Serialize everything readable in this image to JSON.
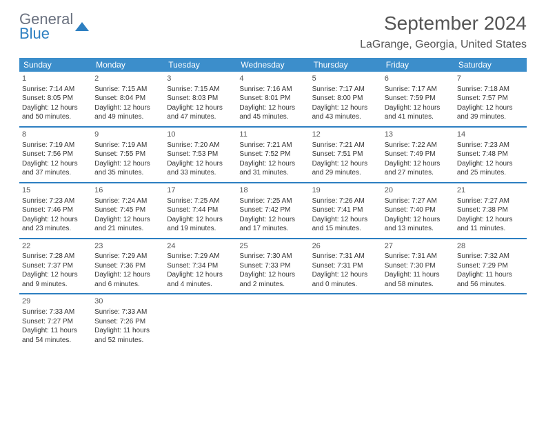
{
  "logo": {
    "line1": "General",
    "line2": "Blue"
  },
  "title": {
    "monthYear": "September 2024",
    "location": "LaGrange, Georgia, United States"
  },
  "weekdays": [
    "Sunday",
    "Monday",
    "Tuesday",
    "Wednesday",
    "Thursday",
    "Friday",
    "Saturday"
  ],
  "colors": {
    "header_bg": "#3c8ecb",
    "border": "#2d7fc1",
    "text": "#333333",
    "title_text": "#555555"
  },
  "weeks": [
    [
      {
        "day": "1",
        "sunrise": "7:14 AM",
        "sunset": "8:05 PM",
        "daylight": "12 hours and 50 minutes."
      },
      {
        "day": "2",
        "sunrise": "7:15 AM",
        "sunset": "8:04 PM",
        "daylight": "12 hours and 49 minutes."
      },
      {
        "day": "3",
        "sunrise": "7:15 AM",
        "sunset": "8:03 PM",
        "daylight": "12 hours and 47 minutes."
      },
      {
        "day": "4",
        "sunrise": "7:16 AM",
        "sunset": "8:01 PM",
        "daylight": "12 hours and 45 minutes."
      },
      {
        "day": "5",
        "sunrise": "7:17 AM",
        "sunset": "8:00 PM",
        "daylight": "12 hours and 43 minutes."
      },
      {
        "day": "6",
        "sunrise": "7:17 AM",
        "sunset": "7:59 PM",
        "daylight": "12 hours and 41 minutes."
      },
      {
        "day": "7",
        "sunrise": "7:18 AM",
        "sunset": "7:57 PM",
        "daylight": "12 hours and 39 minutes."
      }
    ],
    [
      {
        "day": "8",
        "sunrise": "7:19 AM",
        "sunset": "7:56 PM",
        "daylight": "12 hours and 37 minutes."
      },
      {
        "day": "9",
        "sunrise": "7:19 AM",
        "sunset": "7:55 PM",
        "daylight": "12 hours and 35 minutes."
      },
      {
        "day": "10",
        "sunrise": "7:20 AM",
        "sunset": "7:53 PM",
        "daylight": "12 hours and 33 minutes."
      },
      {
        "day": "11",
        "sunrise": "7:21 AM",
        "sunset": "7:52 PM",
        "daylight": "12 hours and 31 minutes."
      },
      {
        "day": "12",
        "sunrise": "7:21 AM",
        "sunset": "7:51 PM",
        "daylight": "12 hours and 29 minutes."
      },
      {
        "day": "13",
        "sunrise": "7:22 AM",
        "sunset": "7:49 PM",
        "daylight": "12 hours and 27 minutes."
      },
      {
        "day": "14",
        "sunrise": "7:23 AM",
        "sunset": "7:48 PM",
        "daylight": "12 hours and 25 minutes."
      }
    ],
    [
      {
        "day": "15",
        "sunrise": "7:23 AM",
        "sunset": "7:46 PM",
        "daylight": "12 hours and 23 minutes."
      },
      {
        "day": "16",
        "sunrise": "7:24 AM",
        "sunset": "7:45 PM",
        "daylight": "12 hours and 21 minutes."
      },
      {
        "day": "17",
        "sunrise": "7:25 AM",
        "sunset": "7:44 PM",
        "daylight": "12 hours and 19 minutes."
      },
      {
        "day": "18",
        "sunrise": "7:25 AM",
        "sunset": "7:42 PM",
        "daylight": "12 hours and 17 minutes."
      },
      {
        "day": "19",
        "sunrise": "7:26 AM",
        "sunset": "7:41 PM",
        "daylight": "12 hours and 15 minutes."
      },
      {
        "day": "20",
        "sunrise": "7:27 AM",
        "sunset": "7:40 PM",
        "daylight": "12 hours and 13 minutes."
      },
      {
        "day": "21",
        "sunrise": "7:27 AM",
        "sunset": "7:38 PM",
        "daylight": "12 hours and 11 minutes."
      }
    ],
    [
      {
        "day": "22",
        "sunrise": "7:28 AM",
        "sunset": "7:37 PM",
        "daylight": "12 hours and 9 minutes."
      },
      {
        "day": "23",
        "sunrise": "7:29 AM",
        "sunset": "7:36 PM",
        "daylight": "12 hours and 6 minutes."
      },
      {
        "day": "24",
        "sunrise": "7:29 AM",
        "sunset": "7:34 PM",
        "daylight": "12 hours and 4 minutes."
      },
      {
        "day": "25",
        "sunrise": "7:30 AM",
        "sunset": "7:33 PM",
        "daylight": "12 hours and 2 minutes."
      },
      {
        "day": "26",
        "sunrise": "7:31 AM",
        "sunset": "7:31 PM",
        "daylight": "12 hours and 0 minutes."
      },
      {
        "day": "27",
        "sunrise": "7:31 AM",
        "sunset": "7:30 PM",
        "daylight": "11 hours and 58 minutes."
      },
      {
        "day": "28",
        "sunrise": "7:32 AM",
        "sunset": "7:29 PM",
        "daylight": "11 hours and 56 minutes."
      }
    ],
    [
      {
        "day": "29",
        "sunrise": "7:33 AM",
        "sunset": "7:27 PM",
        "daylight": "11 hours and 54 minutes."
      },
      {
        "day": "30",
        "sunrise": "7:33 AM",
        "sunset": "7:26 PM",
        "daylight": "11 hours and 52 minutes."
      },
      null,
      null,
      null,
      null,
      null
    ]
  ],
  "labels": {
    "sunrise": "Sunrise:",
    "sunset": "Sunset:",
    "daylight": "Daylight:"
  }
}
